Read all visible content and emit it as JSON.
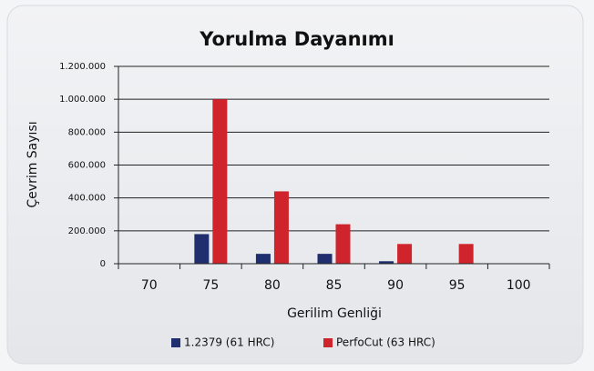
{
  "chart_data": {
    "type": "bar",
    "title": "Yorulma Dayanımı",
    "x_label": "Gerilim Genliği",
    "y_label": "Çevrim Sayısı",
    "categories": [
      "70",
      "75",
      "80",
      "85",
      "90",
      "95",
      "100"
    ],
    "series": [
      {
        "name": "1.2379 (61 HRC)",
        "color": "#1f2e6e",
        "values": [
          0,
          180000,
          60000,
          60000,
          15000,
          0,
          0
        ]
      },
      {
        "name": "PerfoCut (63 HRC)",
        "color": "#d0242c",
        "values": [
          0,
          1000000,
          440000,
          240000,
          120000,
          120000,
          0
        ]
      }
    ],
    "ylim": [
      0,
      1200000
    ],
    "yticks": [
      0,
      {
        "value": 200000,
        "label": "200.000"
      },
      {
        "value": 400000,
        "label": "400.000"
      },
      {
        "value": 600000,
        "label": "600.000"
      },
      {
        "value": 800000,
        "label": "800.000"
      },
      {
        "value": 1000000,
        "label": "1.000.000"
      },
      {
        "value": 1200000,
        "label": "1.200.000"
      }
    ],
    "grid": true,
    "legend": "bottom"
  }
}
